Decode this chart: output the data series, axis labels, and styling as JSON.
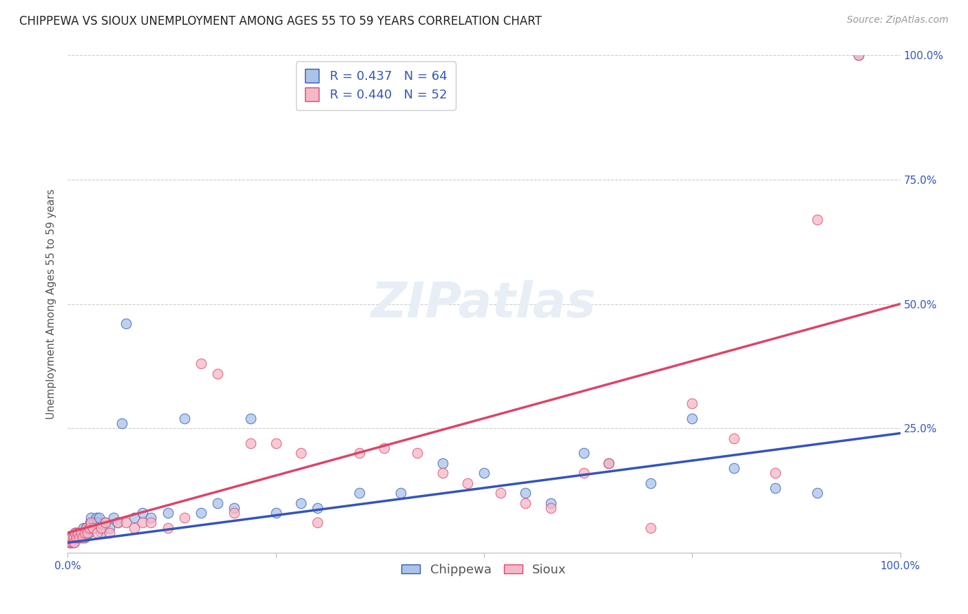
{
  "title": "CHIPPEWA VS SIOUX UNEMPLOYMENT AMONG AGES 55 TO 59 YEARS CORRELATION CHART",
  "source": "Source: ZipAtlas.com",
  "ylabel": "Unemployment Among Ages 55 to 59 years",
  "xlim": [
    0.0,
    1.0
  ],
  "ylim": [
    0.0,
    1.0
  ],
  "background_color": "#ffffff",
  "grid_color": "#cccccc",
  "chippewa_color": "#aac4e8",
  "sioux_color": "#f5b8c8",
  "chippewa_line_color": "#3355bb",
  "sioux_line_color": "#dd4466",
  "chippewa_R": 0.437,
  "chippewa_N": 64,
  "sioux_R": 0.44,
  "sioux_N": 52,
  "chippewa_x": [
    0.002,
    0.003,
    0.004,
    0.005,
    0.006,
    0.007,
    0.008,
    0.009,
    0.01,
    0.01,
    0.012,
    0.013,
    0.015,
    0.016,
    0.018,
    0.018,
    0.019,
    0.02,
    0.021,
    0.022,
    0.023,
    0.024,
    0.025,
    0.026,
    0.027,
    0.028,
    0.03,
    0.032,
    0.034,
    0.036,
    0.038,
    0.04,
    0.045,
    0.05,
    0.055,
    0.06,
    0.065,
    0.07,
    0.08,
    0.09,
    0.1,
    0.12,
    0.14,
    0.16,
    0.18,
    0.2,
    0.22,
    0.25,
    0.28,
    0.3,
    0.35,
    0.4,
    0.45,
    0.5,
    0.55,
    0.58,
    0.62,
    0.65,
    0.7,
    0.75,
    0.8,
    0.85,
    0.9,
    0.95
  ],
  "chippewa_y": [
    0.02,
    0.02,
    0.03,
    0.02,
    0.03,
    0.02,
    0.03,
    0.04,
    0.03,
    0.04,
    0.03,
    0.04,
    0.03,
    0.04,
    0.03,
    0.04,
    0.05,
    0.03,
    0.04,
    0.05,
    0.04,
    0.05,
    0.04,
    0.05,
    0.06,
    0.07,
    0.05,
    0.06,
    0.07,
    0.06,
    0.07,
    0.04,
    0.06,
    0.05,
    0.07,
    0.06,
    0.26,
    0.46,
    0.07,
    0.08,
    0.07,
    0.08,
    0.27,
    0.08,
    0.1,
    0.09,
    0.27,
    0.08,
    0.1,
    0.09,
    0.12,
    0.12,
    0.18,
    0.16,
    0.12,
    0.1,
    0.2,
    0.18,
    0.14,
    0.27,
    0.17,
    0.13,
    0.12,
    1.0
  ],
  "sioux_x": [
    0.003,
    0.004,
    0.005,
    0.006,
    0.007,
    0.008,
    0.009,
    0.01,
    0.012,
    0.014,
    0.016,
    0.018,
    0.02,
    0.022,
    0.024,
    0.026,
    0.028,
    0.03,
    0.035,
    0.04,
    0.045,
    0.05,
    0.06,
    0.07,
    0.08,
    0.09,
    0.1,
    0.12,
    0.14,
    0.16,
    0.18,
    0.2,
    0.22,
    0.25,
    0.28,
    0.3,
    0.35,
    0.38,
    0.42,
    0.45,
    0.48,
    0.52,
    0.55,
    0.58,
    0.62,
    0.65,
    0.7,
    0.75,
    0.8,
    0.85,
    0.9,
    0.95
  ],
  "sioux_y": [
    0.02,
    0.02,
    0.03,
    0.02,
    0.03,
    0.02,
    0.04,
    0.03,
    0.04,
    0.03,
    0.04,
    0.03,
    0.04,
    0.05,
    0.04,
    0.05,
    0.06,
    0.05,
    0.04,
    0.05,
    0.06,
    0.04,
    0.06,
    0.06,
    0.05,
    0.06,
    0.06,
    0.05,
    0.07,
    0.38,
    0.36,
    0.08,
    0.22,
    0.22,
    0.2,
    0.06,
    0.2,
    0.21,
    0.2,
    0.16,
    0.14,
    0.12,
    0.1,
    0.09,
    0.16,
    0.18,
    0.05,
    0.3,
    0.23,
    0.16,
    0.67,
    1.0
  ],
  "chippewa_intercept": 0.02,
  "chippewa_slope": 0.22,
  "sioux_intercept": 0.04,
  "sioux_slope": 0.46,
  "title_fontsize": 12,
  "source_fontsize": 10,
  "axis_fontsize": 11,
  "label_fontsize": 11,
  "legend_fontsize": 13
}
